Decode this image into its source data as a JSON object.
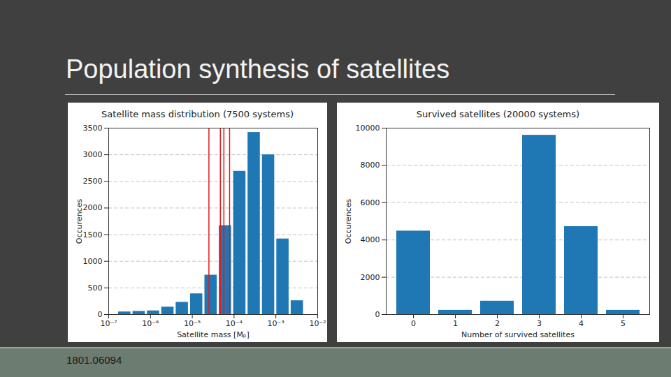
{
  "slide": {
    "title": "Population synthesis of satellites",
    "source": "1801.06094"
  },
  "chart_data": [
    {
      "type": "histogram",
      "title": "Satellite mass distribution (7500 systems)",
      "x_label": "Satellite mass [Mₚ]",
      "y_label": "Occurences",
      "bins": [
        1.62e-07,
        3.58e-07,
        7.91e-07,
        1.746e-06,
        3.855e-06,
        8.51e-06,
        1.879e-05,
        4.15e-05,
        9.16e-05,
        0.0002023,
        0.0004467,
        0.000986,
        0.002178,
        0.00481
      ],
      "values": [
        50,
        60,
        70,
        140,
        230,
        390,
        740,
        1670,
        2690,
        3420,
        3000,
        1420,
        260
      ],
      "color": "#1f77b4",
      "reference_lines": {
        "values": [
          2.5e-05,
          4.7e-05,
          5.7e-05,
          7.8e-05
        ],
        "color": "#e41a1c"
      },
      "log": "x",
      "grid": true,
      "xlim": [
        1e-07,
        0.01
      ],
      "xticks": [
        {
          "value": 1e-07,
          "label": "10⁻⁷"
        },
        {
          "value": 1e-06,
          "label": "10⁻⁶"
        },
        {
          "value": 1e-05,
          "label": "10⁻⁵"
        },
        {
          "value": 0.0001,
          "label": "10⁻⁴"
        },
        {
          "value": 0.001,
          "label": "10⁻³"
        },
        {
          "value": 0.01,
          "label": "10⁻²"
        }
      ],
      "ylim": [
        0,
        3500
      ],
      "yticks": [
        0,
        500,
        1000,
        1500,
        2000,
        2500,
        3000,
        3500
      ]
    },
    {
      "type": "bar",
      "title": "Survived satellites (20000 systems)",
      "x_label": "Number of survived satellites",
      "y_label": "Occurences",
      "categories": [
        "0",
        "1",
        "2",
        "3",
        "4",
        "5"
      ],
      "values": [
        4480,
        230,
        720,
        9620,
        4720,
        230
      ],
      "color": "#1f77b4",
      "grid": true,
      "ylim": [
        0,
        10000
      ],
      "yticks": [
        0,
        2000,
        4000,
        6000,
        8000,
        10000
      ]
    }
  ]
}
